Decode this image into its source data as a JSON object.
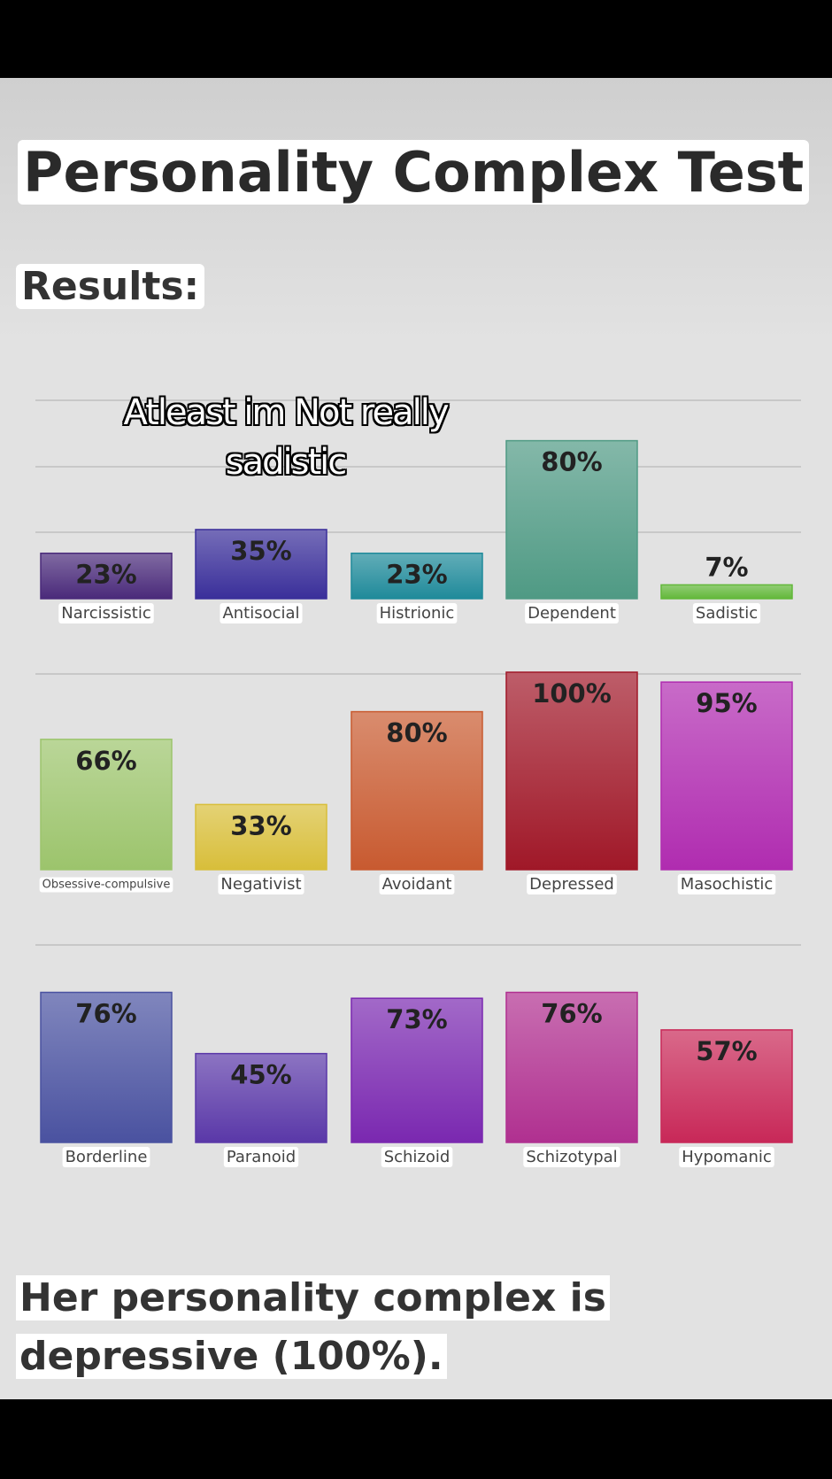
{
  "title": "Personality Complex Test",
  "subtitle": "Results:",
  "caption": "Atleast im Not really sadistic",
  "conclusion": "Her personality complex is depressive (100%).",
  "chart_data": [
    {
      "type": "bar",
      "categories": [
        "Narcissistic",
        "Antisocial",
        "Histrionic",
        "Dependent",
        "Sadistic"
      ],
      "values": [
        23,
        35,
        23,
        80,
        7
      ],
      "value_labels": [
        "23%",
        "35%",
        "23%",
        "80%",
        "7%"
      ],
      "colors": [
        "#4a2a7a",
        "#3a2f9a",
        "#1f8a9a",
        "#4f9a84",
        "#62b83a"
      ],
      "ylim": [
        0,
        100
      ]
    },
    {
      "type": "bar",
      "categories": [
        "Obsessive-compulsive",
        "Negativist",
        "Avoidant",
        "Depressed",
        "Masochistic"
      ],
      "values": [
        66,
        33,
        80,
        100,
        95
      ],
      "value_labels": [
        "66%",
        "33%",
        "80%",
        "100%",
        "95%"
      ],
      "colors": [
        "#9cc46c",
        "#d8be3a",
        "#c85a30",
        "#a01828",
        "#b02cb0"
      ],
      "ylim": [
        0,
        100
      ]
    },
    {
      "type": "bar",
      "categories": [
        "Borderline",
        "Paranoid",
        "Schizoid",
        "Schizotypal",
        "Hypomanic"
      ],
      "values": [
        76,
        45,
        73,
        76,
        57
      ],
      "value_labels": [
        "76%",
        "45%",
        "73%",
        "76%",
        "57%"
      ],
      "colors": [
        "#4a52a0",
        "#5a38a8",
        "#7a28b0",
        "#b03090",
        "#c82858"
      ],
      "ylim": [
        0,
        100
      ]
    }
  ]
}
